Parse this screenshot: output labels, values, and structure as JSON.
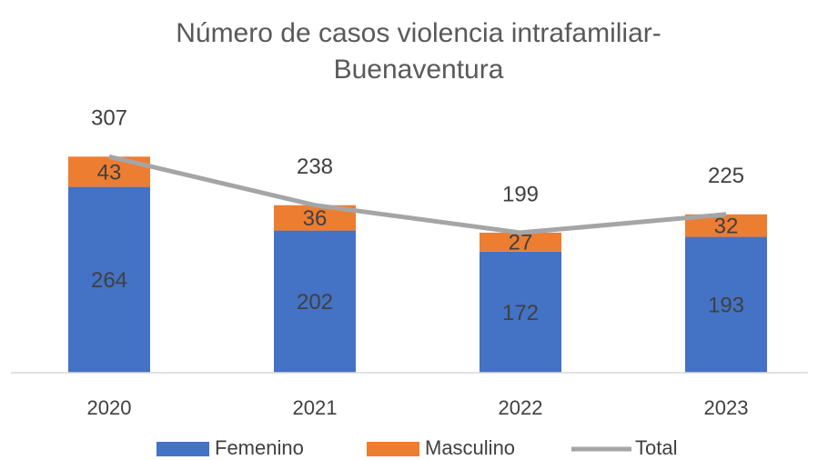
{
  "chart_data": {
    "type": "bar",
    "stacked": true,
    "title": [
      "Número de casos violencia intrafamiliar-",
      "Buenaventura"
    ],
    "categories": [
      "2020",
      "2021",
      "2022",
      "2023"
    ],
    "series": [
      {
        "name": "Femenino",
        "color": "#4472c4",
        "values": [
          264,
          202,
          172,
          193
        ]
      },
      {
        "name": "Masculino",
        "color": "#ed7d31",
        "values": [
          43,
          36,
          27,
          32
        ]
      },
      {
        "name": "Total",
        "type": "line",
        "color": "#a5a5a5",
        "values": [
          307,
          238,
          199,
          225
        ]
      }
    ],
    "ylim": [
      0,
      350
    ],
    "legend": "bottom"
  }
}
